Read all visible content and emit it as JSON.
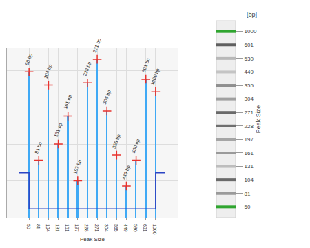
{
  "chart_data": [
    {
      "type": "bar",
      "xlabel": "Peak Size",
      "categories": [
        null,
        "50",
        "81",
        "104",
        "131",
        "161",
        "197",
        "228",
        "271",
        "304",
        "355",
        "449",
        "530",
        "601",
        "1000",
        null
      ],
      "series": [
        {
          "type": "line",
          "color": "#2b45c4",
          "line_style": "step",
          "values": [
            61,
            12,
            12,
            12,
            12,
            12,
            12,
            12,
            12,
            12,
            12,
            12,
            12,
            12,
            61,
            61
          ]
        },
        {
          "type": "bar",
          "color": "#3fa9f5",
          "marker": "cross",
          "values": [
            null,
            198,
            78,
            180,
            100,
            138,
            50,
            183,
            215,
            145,
            85,
            43,
            78,
            188,
            171,
            null
          ],
          "annotations": [
            null,
            "50 bp",
            "81 bp",
            "104 bp",
            "131 bp",
            "161 bp",
            "197 bp",
            "228 bp",
            "271 bp",
            "304 bp",
            "355 bp",
            "449 bp",
            "530 bp",
            "601 bp",
            "1000 bp",
            null
          ]
        }
      ],
      "ylim": [
        0,
        230
      ],
      "yticks": [
        0,
        50,
        100,
        150,
        200
      ],
      "grid": true,
      "tick_labels": "x"
    },
    {
      "type": "gel",
      "title": "[bp]",
      "ylabel": "Peak Size",
      "categories": [
        "50",
        "81",
        "104",
        "131",
        "161",
        "197",
        "228",
        "271",
        "304",
        "355",
        "449",
        "530",
        "601",
        "1000"
      ],
      "colors": [
        "#2fa52f",
        "#9a9a9a",
        "#6a6a6a",
        "#bdbdbd",
        "#9a9a9a",
        "#a5a5a5",
        "#6f6f6f",
        "#6a6a6a",
        "#a0a0a0",
        "#8f8f8f",
        "#c4c4c4",
        "#b8b8b8",
        "#5f5f5f",
        "#2fa52f"
      ],
      "tick_labels": "y"
    }
  ]
}
